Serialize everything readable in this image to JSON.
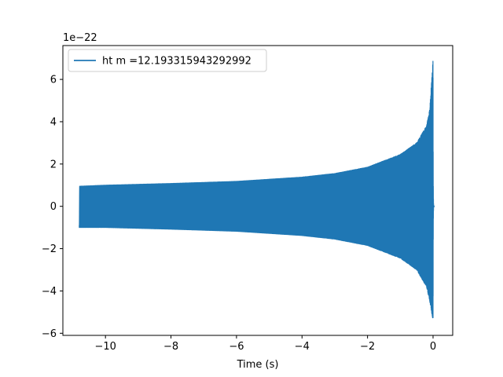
{
  "chart_data": {
    "type": "line",
    "title": "",
    "xlabel": "Time (s)",
    "ylabel": "",
    "y_offset_label": "1e−22",
    "xlim": [
      -11.3,
      0.6
    ],
    "ylim": [
      -6.1,
      7.6
    ],
    "x_ticks": [
      -10,
      -8,
      -6,
      -4,
      -2,
      0
    ],
    "x_tick_labels": [
      "−10",
      "−8",
      "−6",
      "−4",
      "−2",
      "0"
    ],
    "y_ticks": [
      -6,
      -4,
      -2,
      0,
      2,
      4,
      6
    ],
    "y_tick_labels": [
      "−6",
      "−4",
      "−2",
      "0",
      "2",
      "4",
      "6"
    ],
    "grid": false,
    "legend_position": "upper-left",
    "series": [
      {
        "name": "ht m =12.193315943292992",
        "color": "#1f77b4",
        "x_start": -10.8,
        "x_end": 0.0,
        "envelope_upper": [
          [
            -10.8,
            0.95
          ],
          [
            -10.0,
            1.0
          ],
          [
            -8.0,
            1.08
          ],
          [
            -6.0,
            1.18
          ],
          [
            -4.0,
            1.38
          ],
          [
            -3.0,
            1.55
          ],
          [
            -2.0,
            1.85
          ],
          [
            -1.0,
            2.45
          ],
          [
            -0.5,
            3.0
          ],
          [
            -0.2,
            3.8
          ],
          [
            -0.1,
            4.6
          ],
          [
            0.0,
            7.0
          ]
        ],
        "envelope_lower": [
          [
            -10.8,
            -1.0
          ],
          [
            -10.0,
            -1.0
          ],
          [
            -8.0,
            -1.08
          ],
          [
            -6.0,
            -1.18
          ],
          [
            -4.0,
            -1.38
          ],
          [
            -3.0,
            -1.55
          ],
          [
            -2.0,
            -1.85
          ],
          [
            -1.0,
            -2.45
          ],
          [
            -0.5,
            -3.0
          ],
          [
            -0.2,
            -3.8
          ],
          [
            -0.1,
            -4.5
          ],
          [
            0.0,
            -5.4
          ]
        ],
        "ringdown_end": 0.05
      }
    ]
  }
}
